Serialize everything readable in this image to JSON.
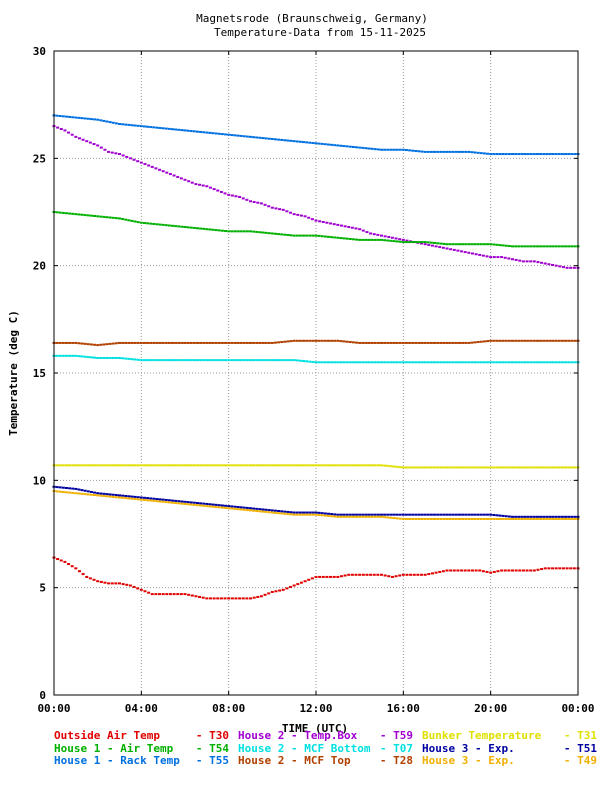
{
  "chart_data": {
    "type": "scatter",
    "title_lines": [
      "Magnetsrode (Braunschweig, Germany)",
      "Temperature-Data from 15-11-2025"
    ],
    "xlabel": "TIME (UTC)",
    "ylabel": "Temperature (deg C)",
    "x_unit": "hours",
    "xlim": [
      0,
      24
    ],
    "ylim": [
      0,
      30
    ],
    "x_ticks": [
      0,
      4,
      8,
      12,
      16,
      20,
      24
    ],
    "x_tick_labels": [
      "00:00",
      "04:00",
      "08:00",
      "12:00",
      "16:00",
      "20:00",
      "00:00"
    ],
    "y_ticks": [
      0,
      5,
      10,
      15,
      20,
      25,
      30
    ],
    "y_tick_labels": [
      "0",
      "5",
      "10",
      "15",
      "20",
      "25",
      "30"
    ],
    "grid": true,
    "legend_position": "bottom",
    "series": [
      {
        "name": "Outside Air Temp",
        "code": "T30",
        "color": "#e00000",
        "points": [
          [
            0,
            6.4
          ],
          [
            0.5,
            6.2
          ],
          [
            1,
            5.9
          ],
          [
            1.5,
            5.5
          ],
          [
            2,
            5.3
          ],
          [
            2.5,
            5.2
          ],
          [
            3,
            5.2
          ],
          [
            3.5,
            5.1
          ],
          [
            4,
            4.9
          ],
          [
            4.5,
            4.7
          ],
          [
            5,
            4.7
          ],
          [
            5.5,
            4.7
          ],
          [
            6,
            4.7
          ],
          [
            6.5,
            4.6
          ],
          [
            7,
            4.5
          ],
          [
            7.5,
            4.5
          ],
          [
            8,
            4.5
          ],
          [
            8.5,
            4.5
          ],
          [
            9,
            4.5
          ],
          [
            9.5,
            4.6
          ],
          [
            10,
            4.8
          ],
          [
            10.5,
            4.9
          ],
          [
            11,
            5.1
          ],
          [
            11.5,
            5.3
          ],
          [
            12,
            5.5
          ],
          [
            12.5,
            5.5
          ],
          [
            13,
            5.5
          ],
          [
            13.5,
            5.6
          ],
          [
            14,
            5.6
          ],
          [
            14.5,
            5.6
          ],
          [
            15,
            5.6
          ],
          [
            15.5,
            5.5
          ],
          [
            16,
            5.6
          ],
          [
            16.5,
            5.6
          ],
          [
            17,
            5.6
          ],
          [
            17.5,
            5.7
          ],
          [
            18,
            5.8
          ],
          [
            18.5,
            5.8
          ],
          [
            19,
            5.8
          ],
          [
            19.5,
            5.8
          ],
          [
            20,
            5.7
          ],
          [
            20.5,
            5.8
          ],
          [
            21,
            5.8
          ],
          [
            21.5,
            5.8
          ],
          [
            22,
            5.8
          ],
          [
            22.5,
            5.9
          ],
          [
            23,
            5.9
          ],
          [
            23.5,
            5.9
          ],
          [
            24,
            5.9
          ]
        ]
      },
      {
        "name": "House 2 - Temp.Box",
        "code": "T59",
        "color": "#a000d0",
        "points": [
          [
            0,
            26.5
          ],
          [
            0.5,
            26.3
          ],
          [
            1,
            26.0
          ],
          [
            1.5,
            25.8
          ],
          [
            2,
            25.6
          ],
          [
            2.5,
            25.3
          ],
          [
            3,
            25.2
          ],
          [
            3.5,
            25.0
          ],
          [
            4,
            24.8
          ],
          [
            4.5,
            24.6
          ],
          [
            5,
            24.4
          ],
          [
            5.5,
            24.2
          ],
          [
            6,
            24.0
          ],
          [
            6.5,
            23.8
          ],
          [
            7,
            23.7
          ],
          [
            7.5,
            23.5
          ],
          [
            8,
            23.3
          ],
          [
            8.5,
            23.2
          ],
          [
            9,
            23.0
          ],
          [
            9.5,
            22.9
          ],
          [
            10,
            22.7
          ],
          [
            10.5,
            22.6
          ],
          [
            11,
            22.4
          ],
          [
            11.5,
            22.3
          ],
          [
            12,
            22.1
          ],
          [
            12.5,
            22.0
          ],
          [
            13,
            21.9
          ],
          [
            13.5,
            21.8
          ],
          [
            14,
            21.7
          ],
          [
            14.5,
            21.5
          ],
          [
            15,
            21.4
          ],
          [
            15.5,
            21.3
          ],
          [
            16,
            21.2
          ],
          [
            16.5,
            21.1
          ],
          [
            17,
            21.0
          ],
          [
            17.5,
            20.9
          ],
          [
            18,
            20.8
          ],
          [
            18.5,
            20.7
          ],
          [
            19,
            20.6
          ],
          [
            19.5,
            20.5
          ],
          [
            20,
            20.4
          ],
          [
            20.5,
            20.4
          ],
          [
            21,
            20.3
          ],
          [
            21.5,
            20.2
          ],
          [
            22,
            20.2
          ],
          [
            22.5,
            20.1
          ],
          [
            23,
            20.0
          ],
          [
            23.5,
            19.9
          ],
          [
            24,
            19.9
          ]
        ]
      },
      {
        "name": "Bunker Temperature",
        "code": "T31",
        "color": "#e0e000",
        "points": [
          [
            0,
            10.7
          ],
          [
            1,
            10.7
          ],
          [
            2,
            10.7
          ],
          [
            3,
            10.7
          ],
          [
            4,
            10.7
          ],
          [
            5,
            10.7
          ],
          [
            6,
            10.7
          ],
          [
            7,
            10.7
          ],
          [
            8,
            10.7
          ],
          [
            9,
            10.7
          ],
          [
            10,
            10.7
          ],
          [
            11,
            10.7
          ],
          [
            12,
            10.7
          ],
          [
            13,
            10.7
          ],
          [
            14,
            10.7
          ],
          [
            15,
            10.7
          ],
          [
            16,
            10.6
          ],
          [
            17,
            10.6
          ],
          [
            18,
            10.6
          ],
          [
            19,
            10.6
          ],
          [
            20,
            10.6
          ],
          [
            21,
            10.6
          ],
          [
            22,
            10.6
          ],
          [
            23,
            10.6
          ],
          [
            24,
            10.6
          ]
        ]
      },
      {
        "name": "House 1 - Air  Temp",
        "code": "T54",
        "color": "#00b000",
        "points": [
          [
            0,
            22.5
          ],
          [
            1,
            22.4
          ],
          [
            2,
            22.3
          ],
          [
            3,
            22.2
          ],
          [
            4,
            22.0
          ],
          [
            5,
            21.9
          ],
          [
            6,
            21.8
          ],
          [
            7,
            21.7
          ],
          [
            8,
            21.6
          ],
          [
            9,
            21.6
          ],
          [
            10,
            21.5
          ],
          [
            11,
            21.4
          ],
          [
            12,
            21.4
          ],
          [
            13,
            21.3
          ],
          [
            14,
            21.2
          ],
          [
            15,
            21.2
          ],
          [
            16,
            21.1
          ],
          [
            17,
            21.1
          ],
          [
            18,
            21.0
          ],
          [
            19,
            21.0
          ],
          [
            20,
            21.0
          ],
          [
            21,
            20.9
          ],
          [
            22,
            20.9
          ],
          [
            23,
            20.9
          ],
          [
            24,
            20.9
          ]
        ]
      },
      {
        "name": "House 2 - MCF Bottom",
        "code": "T07",
        "color": "#00e0e0",
        "points": [
          [
            0,
            15.8
          ],
          [
            1,
            15.8
          ],
          [
            2,
            15.7
          ],
          [
            3,
            15.7
          ],
          [
            4,
            15.6
          ],
          [
            5,
            15.6
          ],
          [
            6,
            15.6
          ],
          [
            7,
            15.6
          ],
          [
            8,
            15.6
          ],
          [
            9,
            15.6
          ],
          [
            10,
            15.6
          ],
          [
            11,
            15.6
          ],
          [
            12,
            15.5
          ],
          [
            13,
            15.5
          ],
          [
            14,
            15.5
          ],
          [
            15,
            15.5
          ],
          [
            16,
            15.5
          ],
          [
            17,
            15.5
          ],
          [
            18,
            15.5
          ],
          [
            19,
            15.5
          ],
          [
            20,
            15.5
          ],
          [
            21,
            15.5
          ],
          [
            22,
            15.5
          ],
          [
            23,
            15.5
          ],
          [
            24,
            15.5
          ]
        ]
      },
      {
        "name": "House 3 - Exp.",
        "code": "T51",
        "color": "#0000a0",
        "points": [
          [
            0,
            9.7
          ],
          [
            1,
            9.6
          ],
          [
            2,
            9.4
          ],
          [
            3,
            9.3
          ],
          [
            4,
            9.2
          ],
          [
            5,
            9.1
          ],
          [
            6,
            9.0
          ],
          [
            7,
            8.9
          ],
          [
            8,
            8.8
          ],
          [
            9,
            8.7
          ],
          [
            10,
            8.6
          ],
          [
            11,
            8.5
          ],
          [
            12,
            8.5
          ],
          [
            13,
            8.4
          ],
          [
            14,
            8.4
          ],
          [
            15,
            8.4
          ],
          [
            16,
            8.4
          ],
          [
            17,
            8.4
          ],
          [
            18,
            8.4
          ],
          [
            19,
            8.4
          ],
          [
            20,
            8.4
          ],
          [
            21,
            8.3
          ],
          [
            22,
            8.3
          ],
          [
            23,
            8.3
          ],
          [
            24,
            8.3
          ]
        ]
      },
      {
        "name": "House 1 - Rack Temp",
        "code": "T55",
        "color": "#0070e0",
        "points": [
          [
            0,
            27.0
          ],
          [
            1,
            26.9
          ],
          [
            2,
            26.8
          ],
          [
            3,
            26.6
          ],
          [
            4,
            26.5
          ],
          [
            5,
            26.4
          ],
          [
            6,
            26.3
          ],
          [
            7,
            26.2
          ],
          [
            8,
            26.1
          ],
          [
            9,
            26.0
          ],
          [
            10,
            25.9
          ],
          [
            11,
            25.8
          ],
          [
            12,
            25.7
          ],
          [
            13,
            25.6
          ],
          [
            14,
            25.5
          ],
          [
            15,
            25.4
          ],
          [
            16,
            25.4
          ],
          [
            17,
            25.3
          ],
          [
            18,
            25.3
          ],
          [
            19,
            25.3
          ],
          [
            20,
            25.2
          ],
          [
            21,
            25.2
          ],
          [
            22,
            25.2
          ],
          [
            23,
            25.2
          ],
          [
            24,
            25.2
          ]
        ]
      },
      {
        "name": "House 2 - MCF Top",
        "code": "T28",
        "color": "#b04000",
        "points": [
          [
            0,
            16.4
          ],
          [
            1,
            16.4
          ],
          [
            2,
            16.3
          ],
          [
            3,
            16.4
          ],
          [
            4,
            16.4
          ],
          [
            5,
            16.4
          ],
          [
            6,
            16.4
          ],
          [
            7,
            16.4
          ],
          [
            8,
            16.4
          ],
          [
            9,
            16.4
          ],
          [
            10,
            16.4
          ],
          [
            11,
            16.5
          ],
          [
            12,
            16.5
          ],
          [
            13,
            16.5
          ],
          [
            14,
            16.4
          ],
          [
            15,
            16.4
          ],
          [
            16,
            16.4
          ],
          [
            17,
            16.4
          ],
          [
            18,
            16.4
          ],
          [
            19,
            16.4
          ],
          [
            20,
            16.5
          ],
          [
            21,
            16.5
          ],
          [
            22,
            16.5
          ],
          [
            23,
            16.5
          ],
          [
            24,
            16.5
          ]
        ]
      },
      {
        "name": "House 3 - Exp.",
        "code": "T49",
        "color": "#f0b000",
        "points": [
          [
            0,
            9.5
          ],
          [
            1,
            9.4
          ],
          [
            2,
            9.3
          ],
          [
            3,
            9.2
          ],
          [
            4,
            9.1
          ],
          [
            5,
            9.0
          ],
          [
            6,
            8.9
          ],
          [
            7,
            8.8
          ],
          [
            8,
            8.7
          ],
          [
            9,
            8.6
          ],
          [
            10,
            8.5
          ],
          [
            11,
            8.4
          ],
          [
            12,
            8.4
          ],
          [
            13,
            8.3
          ],
          [
            14,
            8.3
          ],
          [
            15,
            8.3
          ],
          [
            16,
            8.2
          ],
          [
            17,
            8.2
          ],
          [
            18,
            8.2
          ],
          [
            19,
            8.2
          ],
          [
            20,
            8.2
          ],
          [
            21,
            8.2
          ],
          [
            22,
            8.2
          ],
          [
            23,
            8.2
          ],
          [
            24,
            8.2
          ]
        ]
      }
    ]
  }
}
